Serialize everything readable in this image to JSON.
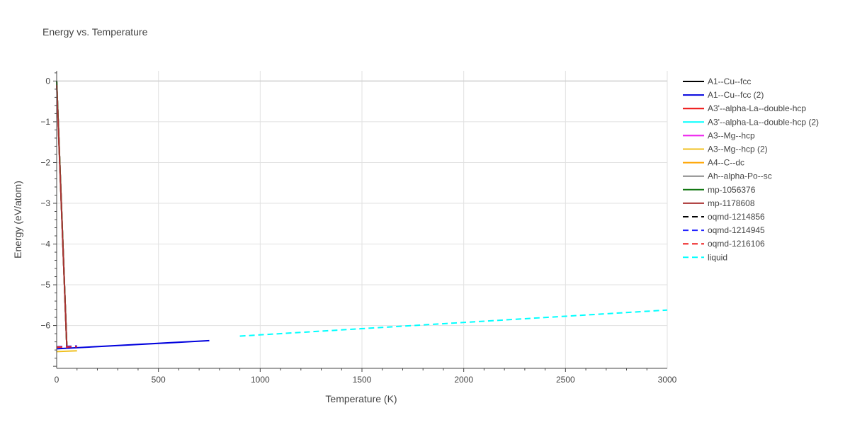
{
  "chart_data": {
    "type": "line",
    "title": "Energy vs. Temperature",
    "xlabel": "Temperature (K)",
    "ylabel": "Energy (eV/atom)",
    "xlim": [
      0,
      3000
    ],
    "ylim": [
      -7.05,
      0.25
    ],
    "x_ticks": [
      0,
      500,
      1000,
      1500,
      2000,
      2500,
      3000
    ],
    "x_tick_labels": [
      "0",
      "500",
      "1000",
      "1500",
      "2000",
      "2500",
      "3000"
    ],
    "y_ticks": [
      0,
      -1,
      -2,
      -3,
      -4,
      -5,
      -6
    ],
    "y_tick_labels": [
      "0",
      "−1",
      "−2",
      "−3",
      "−4",
      "−5",
      "−6"
    ],
    "grid": true,
    "legend_position": "right",
    "series": [
      {
        "name": "A1--Cu--fcc",
        "color": "#000000",
        "dash": "solid",
        "x": [
          0,
          50
        ],
        "y": [
          0,
          -6.55
        ]
      },
      {
        "name": "A1--Cu--fcc (2)",
        "color": "#0000dd",
        "dash": "solid",
        "x": [
          0,
          750
        ],
        "y": [
          -6.57,
          -6.37
        ]
      },
      {
        "name": "A3'--alpha-La--double-hcp",
        "color": "#ee1111",
        "dash": "solid",
        "x": [
          0,
          50
        ],
        "y": [
          0,
          -6.55
        ]
      },
      {
        "name": "A3'--alpha-La--double-hcp (2)",
        "color": "#00ffff",
        "dash": "solid",
        "x": [
          0,
          50
        ],
        "y": [
          0,
          -6.55
        ]
      },
      {
        "name": "A3--Mg--hcp",
        "color": "#ee22ee",
        "dash": "solid",
        "x": [
          0,
          50
        ],
        "y": [
          0,
          -6.55
        ]
      },
      {
        "name": "A3--Mg--hcp (2)",
        "color": "#f0c020",
        "dash": "solid",
        "x": [
          0,
          100
        ],
        "y": [
          -6.64,
          -6.62
        ]
      },
      {
        "name": "A4--C--dc",
        "color": "#ffa500",
        "dash": "solid",
        "x": [
          0,
          50
        ],
        "y": [
          0,
          -6.55
        ]
      },
      {
        "name": "Ah--alpha-Po--sc",
        "color": "#888888",
        "dash": "solid",
        "x": [
          0,
          50
        ],
        "y": [
          0,
          -6.55
        ]
      },
      {
        "name": "mp-1056376",
        "color": "#117711",
        "dash": "solid",
        "x": [
          0,
          50
        ],
        "y": [
          0,
          -6.55
        ]
      },
      {
        "name": "mp-1178608",
        "color": "#aa3333",
        "dash": "solid",
        "x": [
          0,
          50
        ],
        "y": [
          -0.1,
          -6.55
        ]
      },
      {
        "name": "oqmd-1214856",
        "color": "#000000",
        "dash": "dash",
        "x": [
          0,
          100
        ],
        "y": [
          -6.52,
          -6.52
        ]
      },
      {
        "name": "oqmd-1214945",
        "color": "#2222ff",
        "dash": "dash",
        "x": [
          0,
          100
        ],
        "y": [
          -6.52,
          -6.5
        ]
      },
      {
        "name": "oqmd-1216106",
        "color": "#ee2222",
        "dash": "dash",
        "x": [
          0,
          100
        ],
        "y": [
          -6.53,
          -6.52
        ]
      },
      {
        "name": "liquid",
        "color": "#00ffff",
        "dash": "dash",
        "x": [
          900,
          3000
        ],
        "y": [
          -6.26,
          -5.62
        ]
      }
    ]
  }
}
